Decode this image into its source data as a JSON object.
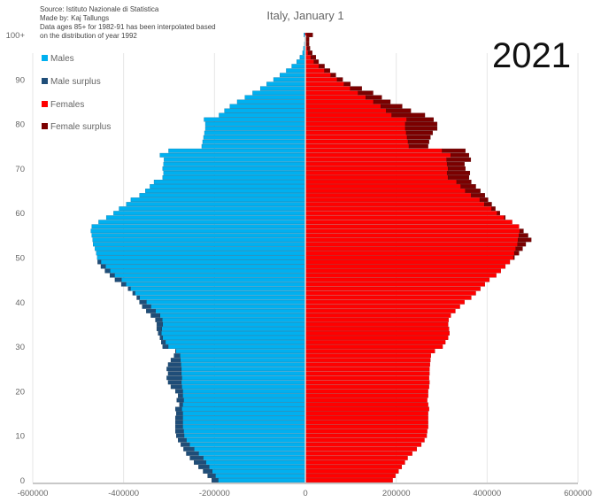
{
  "chart_data": {
    "type": "bar",
    "orientation": "horizontal-pyramid",
    "title": "Italy, January 1",
    "year_label": "2021",
    "notes": [
      "Source: Istituto Nazionale di Statistica",
      "Made by: Kaj Tallungs",
      "Data ages 85+ for 1982-91 has been interpolated based",
      "on the distribution of year 1992"
    ],
    "legend": [
      {
        "label": "Males",
        "color": "#00b0f0"
      },
      {
        "label": "Male surplus",
        "color": "#1f4e79"
      },
      {
        "label": "Females",
        "color": "#ff0000"
      },
      {
        "label": "Female surplus",
        "color": "#7b0000"
      }
    ],
    "legend_position": "top-left",
    "xlim": [
      -600000,
      600000
    ],
    "x_ticks": [
      "-600000",
      "-400000",
      "-200000",
      "0",
      "200000",
      "400000",
      "600000"
    ],
    "x_tick_values": [
      -600000,
      -400000,
      -200000,
      0,
      200000,
      400000,
      600000
    ],
    "y_ticks": [
      {
        "age": 0,
        "label": "0"
      },
      {
        "age": 10,
        "label": "10"
      },
      {
        "age": 20,
        "label": "20"
      },
      {
        "age": 30,
        "label": "30"
      },
      {
        "age": 40,
        "label": "40"
      },
      {
        "age": 50,
        "label": "50"
      },
      {
        "age": 60,
        "label": "60"
      },
      {
        "age": 70,
        "label": "70"
      },
      {
        "age": 80,
        "label": "80"
      },
      {
        "age": 90,
        "label": "90"
      },
      {
        "age": 100,
        "label": "100+"
      }
    ],
    "grid": true,
    "ages_from": 0,
    "males": [
      206000,
      215000,
      225000,
      235000,
      245000,
      254000,
      262000,
      268000,
      274000,
      280000,
      284000,
      286000,
      286000,
      286000,
      286000,
      284000,
      286000,
      277000,
      283000,
      280000,
      286000,
      296000,
      302000,
      305000,
      302000,
      305000,
      302000,
      296000,
      289000,
      286000,
      314000,
      317000,
      320000,
      324000,
      327000,
      327000,
      330000,
      340000,
      350000,
      359000,
      365000,
      371000,
      380000,
      390000,
      405000,
      419000,
      430000,
      441000,
      450000,
      457000,
      458000,
      460000,
      463000,
      467000,
      468000,
      470000,
      472000,
      470000,
      455000,
      438000,
      422000,
      410000,
      394000,
      384000,
      365000,
      352000,
      342000,
      333000,
      314000,
      312000,
      314000,
      312000,
      311000,
      320000,
      301000,
      228000,
      226000,
      224000,
      222000,
      220000,
      220000,
      223000,
      190000,
      178000,
      166000,
      150000,
      133000,
      116000,
      99000,
      85000,
      70000,
      56000,
      42000,
      30000,
      19000,
      12000,
      6000,
      4000,
      2000,
      1000,
      3000
    ],
    "females": [
      192000,
      198000,
      205000,
      212000,
      219000,
      225000,
      235000,
      245000,
      255000,
      262000,
      267000,
      268000,
      270000,
      270000,
      270000,
      270000,
      272000,
      270000,
      268000,
      270000,
      270000,
      272000,
      273000,
      272000,
      273000,
      273000,
      274000,
      275000,
      276000,
      285000,
      302000,
      308000,
      314000,
      317000,
      316000,
      314000,
      315000,
      320000,
      330000,
      340000,
      350000,
      365000,
      375000,
      385000,
      395000,
      405000,
      420000,
      430000,
      440000,
      450000,
      460000,
      470000,
      478000,
      485000,
      497000,
      490000,
      480000,
      470000,
      455000,
      440000,
      428000,
      418000,
      410000,
      402000,
      395000,
      385000,
      375000,
      365000,
      360000,
      362000,
      352000,
      350000,
      364000,
      360000,
      352000,
      270000,
      272000,
      275000,
      280000,
      290000,
      290000,
      282000,
      263000,
      232000,
      213000,
      187000,
      168000,
      149000,
      124000,
      99000,
      82000,
      67000,
      54000,
      42000,
      29000,
      23000,
      15000,
      10000,
      8000,
      8000,
      16000
    ]
  }
}
